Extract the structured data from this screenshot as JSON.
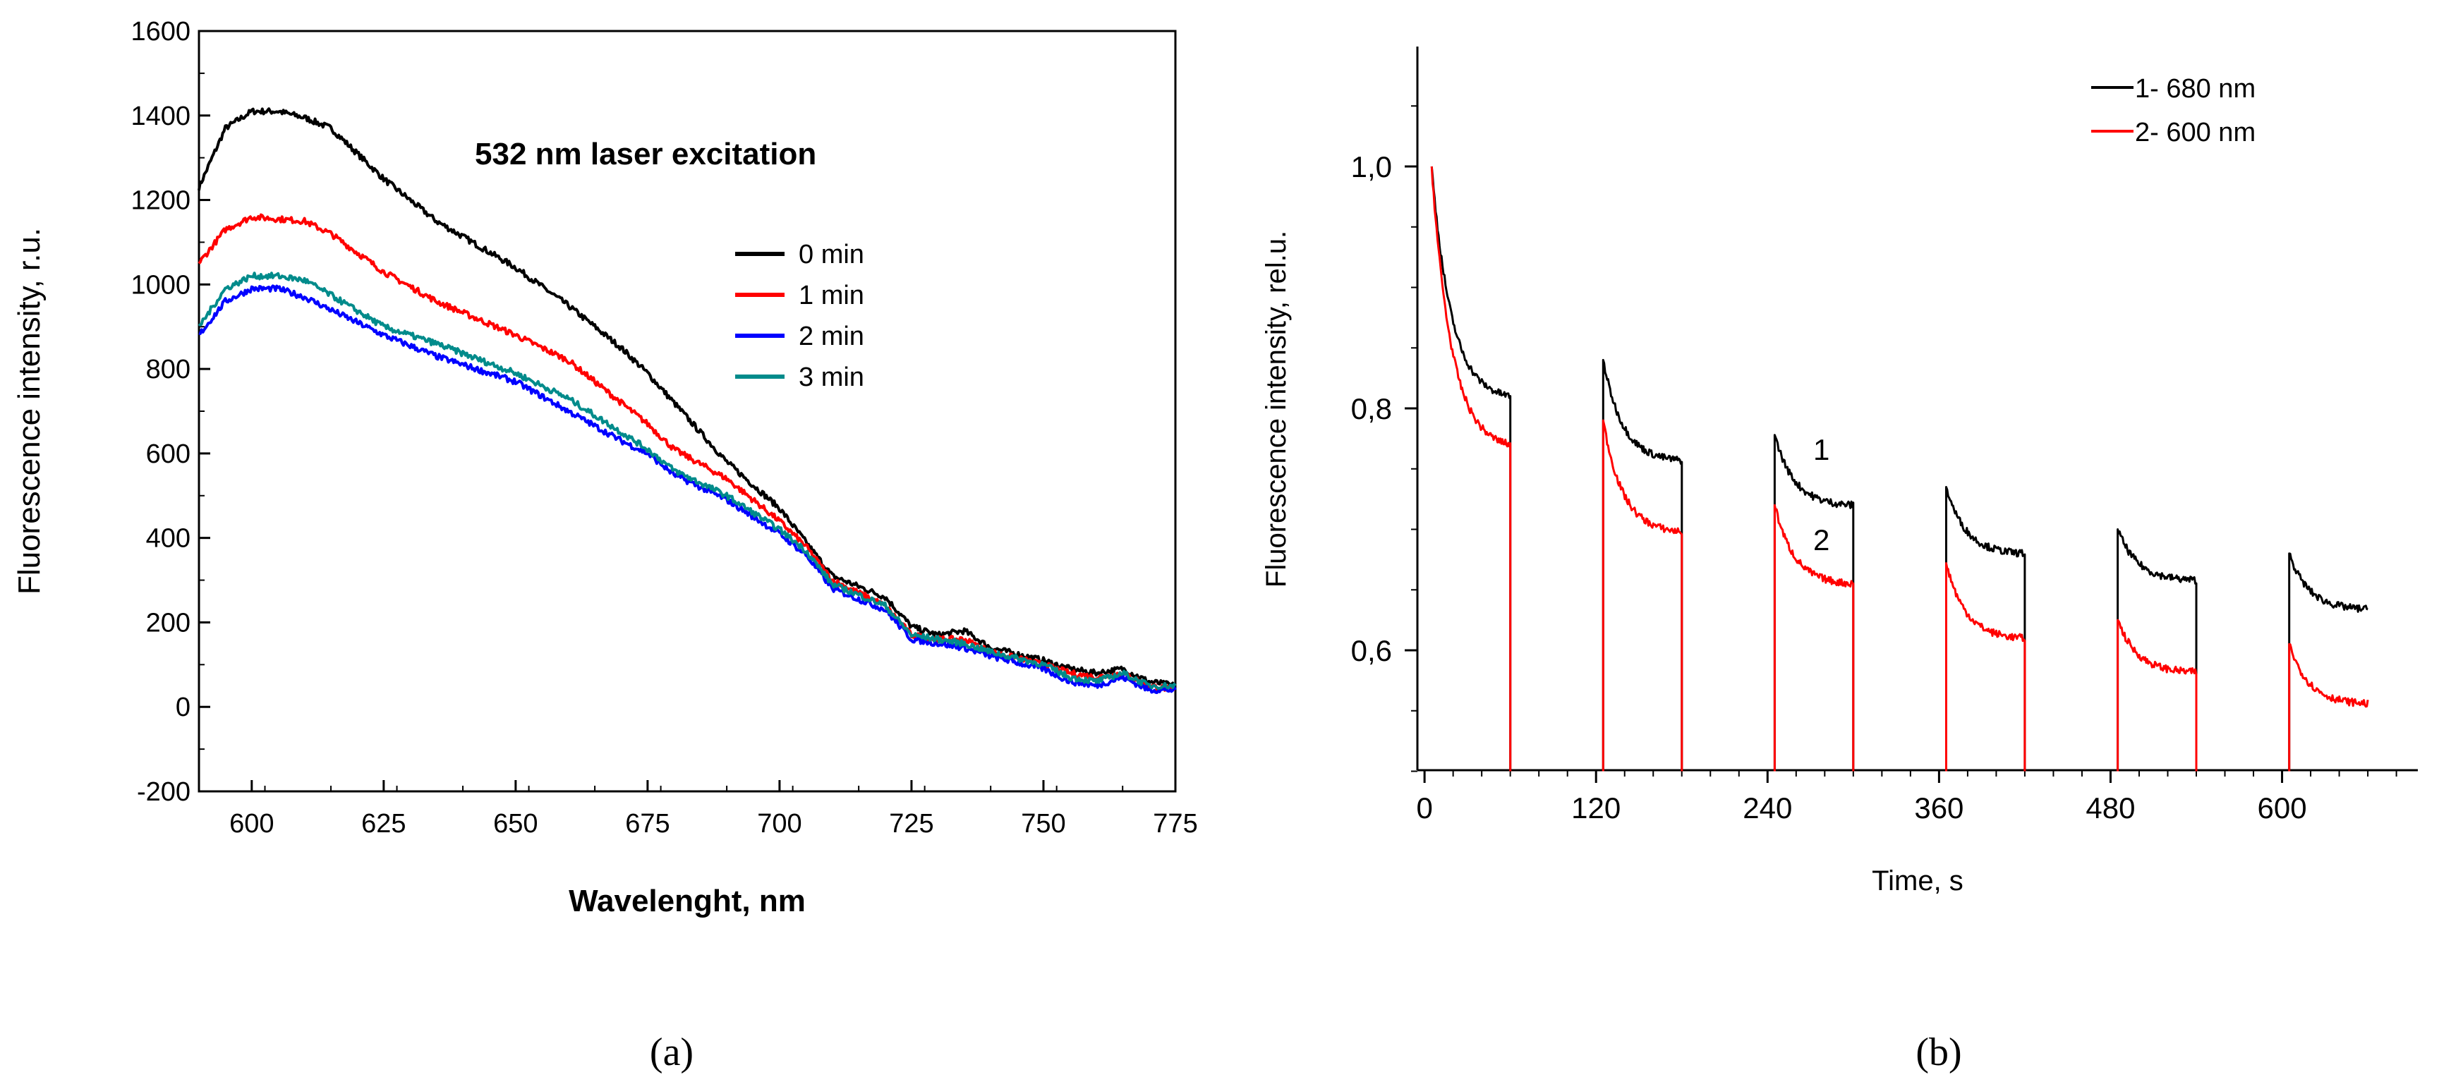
{
  "chart_data": [
    {
      "type": "line",
      "title": "532 nm laser excitation",
      "xlabel": "Wavelenght, nm",
      "ylabel": "Fluorescence intensity, r.u.",
      "xlim": [
        590,
        775
      ],
      "ylim": [
        -200,
        1600
      ],
      "xticks": [
        "600",
        "625",
        "650",
        "675",
        "700",
        "725",
        "750",
        "775"
      ],
      "yticks": [
        "-200",
        "0",
        "200",
        "400",
        "600",
        "800",
        "1000",
        "1200",
        "1400",
        "1600"
      ],
      "legend_position": "center-right",
      "x": [
        590,
        595,
        600,
        605,
        610,
        615,
        625,
        635,
        650,
        660,
        670,
        675,
        680,
        690,
        700,
        705,
        710,
        720,
        725,
        730,
        735,
        740,
        750,
        755,
        760,
        765,
        770,
        775
      ],
      "series": [
        {
          "name": "0 min",
          "color": "#000000",
          "values": [
            1230,
            1370,
            1410,
            1410,
            1395,
            1370,
            1250,
            1150,
            1040,
            950,
            850,
            790,
            720,
            580,
            470,
            390,
            310,
            260,
            190,
            170,
            180,
            140,
            110,
            90,
            80,
            90,
            60,
            50
          ]
        },
        {
          "name": "1 min",
          "color": "#ff0000",
          "values": [
            1050,
            1130,
            1160,
            1155,
            1150,
            1120,
            1030,
            960,
            880,
            820,
            720,
            670,
            610,
            540,
            440,
            380,
            300,
            240,
            170,
            160,
            160,
            130,
            100,
            80,
            70,
            80,
            50,
            40
          ]
        },
        {
          "name": "2 min",
          "color": "#0000ff",
          "values": [
            880,
            960,
            990,
            990,
            970,
            940,
            880,
            830,
            770,
            700,
            630,
            600,
            550,
            490,
            410,
            360,
            280,
            230,
            160,
            150,
            140,
            120,
            90,
            60,
            50,
            70,
            40,
            40
          ]
        },
        {
          "name": "3 min",
          "color": "#008b8b",
          "values": [
            900,
            990,
            1020,
            1020,
            1010,
            975,
            900,
            860,
            790,
            730,
            650,
            610,
            560,
            500,
            420,
            370,
            290,
            240,
            170,
            160,
            150,
            130,
            100,
            70,
            60,
            80,
            50,
            50
          ]
        }
      ]
    },
    {
      "type": "line",
      "xlabel": "Time, s",
      "ylabel": "Fluorescence intensity, rel.u.",
      "xlim": [
        -5,
        695
      ],
      "ylim": [
        0.5,
        1.11
      ],
      "xticks": [
        "0",
        "120",
        "240",
        "360",
        "480",
        "600"
      ],
      "yticks": [
        "0,6",
        "0,8",
        "1,0"
      ],
      "legend_position": "top-right",
      "curve_labels": [
        "1",
        "2"
      ],
      "segments_time": [
        [
          5,
          60
        ],
        [
          125,
          180
        ],
        [
          245,
          300
        ],
        [
          365,
          420
        ],
        [
          485,
          540
        ],
        [
          605,
          660
        ]
      ],
      "series": [
        {
          "name": "1- 680 nm",
          "color": "#000000",
          "segment_start": [
            1.0,
            0.84,
            0.778,
            0.735,
            0.7,
            0.68
          ],
          "segment_end": [
            0.81,
            0.757,
            0.72,
            0.68,
            0.658,
            0.634
          ]
        },
        {
          "name": "2- 600 nm",
          "color": "#ff0000",
          "segment_start": [
            1.0,
            0.79,
            0.72,
            0.672,
            0.625,
            0.605
          ],
          "segment_end": [
            0.77,
            0.698,
            0.655,
            0.61,
            0.582,
            0.556
          ]
        }
      ]
    }
  ],
  "panel_labels": [
    "(a)",
    "(b)"
  ]
}
